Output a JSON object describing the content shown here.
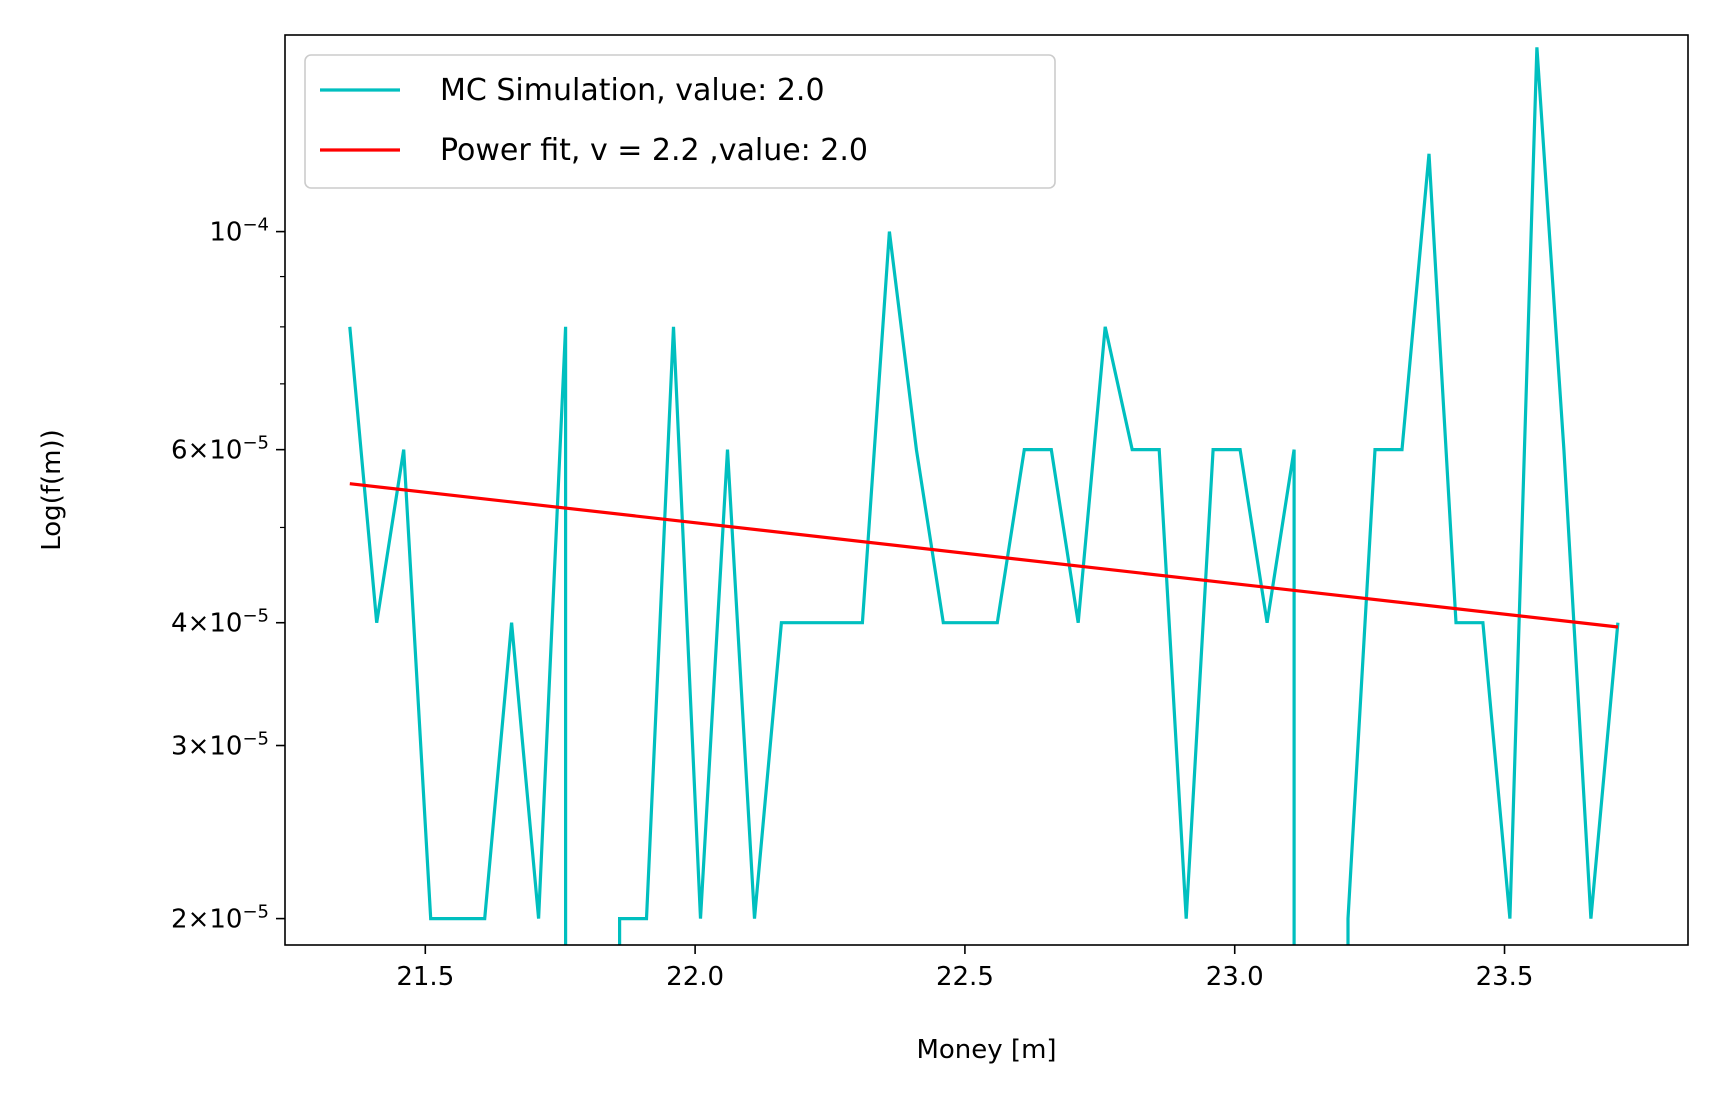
{
  "chart_data": {
    "type": "line",
    "xlabel": "Money [m]",
    "ylabel": "Log(f(m))",
    "yscale": "log",
    "xlim": [
      21.24,
      23.84
    ],
    "ylim": [
      1.88e-05,
      0.0001585
    ],
    "grid": false,
    "legend_position": "top-left",
    "x_ticks": [
      {
        "value": 21.5,
        "label": "21.5"
      },
      {
        "value": 22.0,
        "label": "22.0"
      },
      {
        "value": 22.5,
        "label": "22.5"
      },
      {
        "value": 23.0,
        "label": "23.0"
      },
      {
        "value": 23.5,
        "label": "23.5"
      }
    ],
    "y_ticks": [
      {
        "value": 2e-05,
        "mant": "2",
        "exp": "−5"
      },
      {
        "value": 3e-05,
        "mant": "3",
        "exp": "−5"
      },
      {
        "value": 4e-05,
        "mant": "4",
        "exp": "−5"
      },
      {
        "value": 6e-05,
        "mant": "6",
        "exp": "−5"
      },
      {
        "value": 0.0001,
        "mant": "",
        "exp": "−4"
      }
    ],
    "y_minor_ticks": [
      5e-05,
      7e-05,
      8e-05,
      9e-05
    ],
    "series": [
      {
        "name": "MC Simulation, value: 2.0",
        "color": "#00bfbf",
        "points": [
          [
            21.36,
            8e-05
          ],
          [
            21.41,
            4e-05
          ],
          [
            21.46,
            6e-05
          ],
          [
            21.51,
            2e-05
          ],
          [
            21.56,
            2e-05
          ],
          [
            21.61,
            2e-05
          ],
          [
            21.66,
            4e-05
          ],
          [
            21.71,
            2e-05
          ],
          [
            21.76,
            8e-05
          ],
          [
            21.76,
            1.88e-05
          ],
          null,
          [
            21.86,
            1.88e-05
          ],
          [
            21.86,
            2e-05
          ],
          [
            21.91,
            2e-05
          ],
          [
            21.96,
            8e-05
          ],
          [
            22.01,
            2e-05
          ],
          [
            22.06,
            6e-05
          ],
          [
            22.11,
            2e-05
          ],
          [
            22.16,
            4e-05
          ],
          [
            22.21,
            4e-05
          ],
          [
            22.26,
            4e-05
          ],
          [
            22.31,
            4e-05
          ],
          [
            22.36,
            0.0001
          ],
          [
            22.41,
            6e-05
          ],
          [
            22.46,
            4e-05
          ],
          [
            22.51,
            4e-05
          ],
          [
            22.56,
            4e-05
          ],
          [
            22.61,
            6e-05
          ],
          [
            22.66,
            6e-05
          ],
          [
            22.71,
            4e-05
          ],
          [
            22.76,
            8e-05
          ],
          [
            22.81,
            6e-05
          ],
          [
            22.86,
            6e-05
          ],
          [
            22.91,
            2e-05
          ],
          [
            22.96,
            6e-05
          ],
          [
            23.01,
            6e-05
          ],
          [
            23.06,
            4e-05
          ],
          [
            23.11,
            6e-05
          ],
          [
            23.11,
            1.88e-05
          ],
          null,
          [
            23.21,
            1.88e-05
          ],
          [
            23.21,
            2e-05
          ],
          [
            23.26,
            6e-05
          ],
          [
            23.31,
            6e-05
          ],
          [
            23.36,
            0.00012
          ],
          [
            23.41,
            4e-05
          ],
          [
            23.46,
            4e-05
          ],
          [
            23.51,
            2e-05
          ],
          [
            23.56,
            0.000154
          ],
          [
            23.61,
            6e-05
          ],
          [
            23.66,
            2e-05
          ],
          [
            23.71,
            4e-05
          ]
        ]
      },
      {
        "name": "Power fit, v = 2.2 ,value: 2.0",
        "color": "#ff0000",
        "points": [
          [
            21.36,
            5.54e-05
          ],
          [
            23.71,
            3.96e-05
          ]
        ]
      }
    ]
  }
}
